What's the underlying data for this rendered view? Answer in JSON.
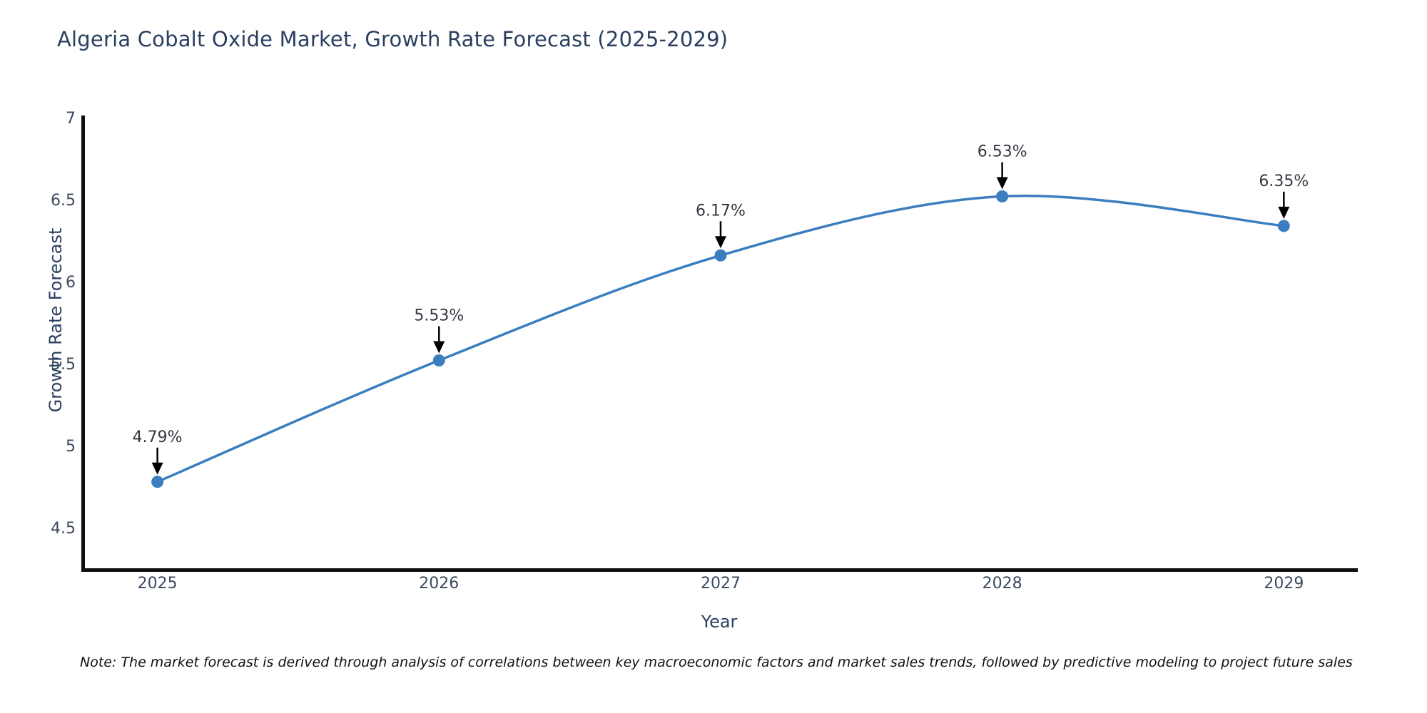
{
  "chart_data": {
    "type": "line",
    "title": "Algeria Cobalt Oxide Market, Growth Rate Forecast (2025-2029)",
    "xlabel": "Year",
    "ylabel": "Growth Rate Forecast",
    "x": [
      2025,
      2026,
      2027,
      2028,
      2029
    ],
    "values": [
      4.79,
      5.53,
      6.17,
      6.53,
      6.35
    ],
    "point_labels": [
      "4.79%",
      "5.53%",
      "6.17%",
      "6.53%",
      "6.35%"
    ],
    "series_name": "Growth Rate Forecast",
    "xticks": [
      "2025",
      "2026",
      "2027",
      "2028",
      "2029"
    ],
    "yticks": [
      "7",
      "6.5",
      "6",
      "5.5",
      "5",
      "4.5"
    ],
    "ytick_values": [
      7,
      6.5,
      6,
      5.5,
      5,
      4.5
    ],
    "xlim": [
      2024.74,
      2029.25
    ],
    "ylim": [
      4.25,
      7.01
    ],
    "grid": false,
    "legend_position": "none",
    "line_color": "#3a7ebf",
    "marker_color": "#3a7ebf",
    "annotation_text_color": "#333840",
    "annotation_arrow_color": "#000000",
    "axis_spine_color": "#101010"
  },
  "note": {
    "text": "Note: The market forecast is derived through analysis of correlations between key macroeconomic factors and market sales trends, followed by predictive modeling to project future sales"
  }
}
